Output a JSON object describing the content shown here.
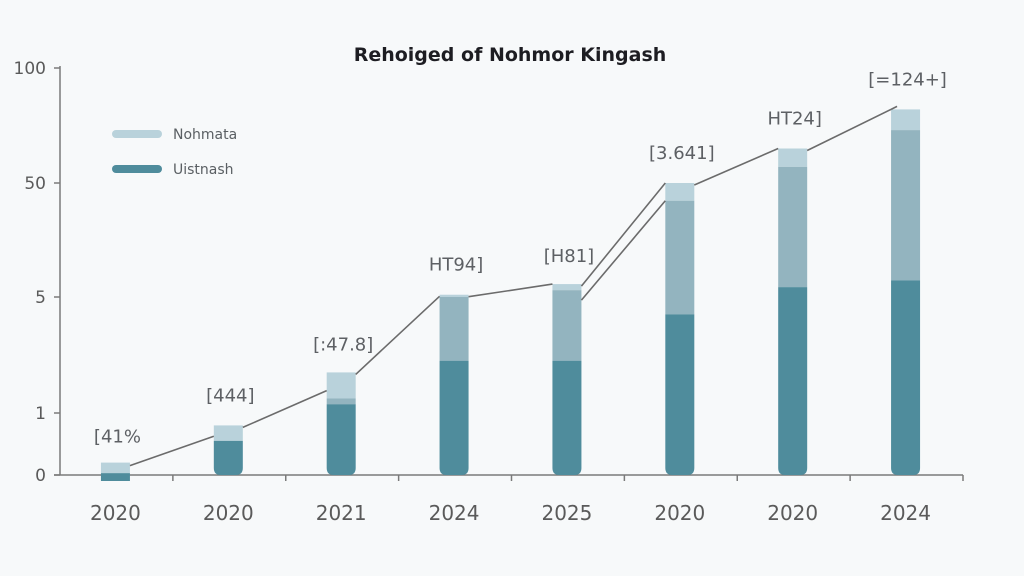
{
  "chart_data": {
    "type": "bar",
    "stacked": true,
    "title": "Rehoiged of Nohmor Kingash",
    "xlabel": "",
    "ylabel": "",
    "y_ticks": [
      0,
      1,
      5,
      50,
      100
    ],
    "y_tick_labels": [
      "0",
      "1",
      "5",
      "50",
      "100"
    ],
    "ylim": [
      0,
      100
    ],
    "y_scale": "nonlinear (ticks 0, 1, 5, 50, 100 evenly spaced)",
    "grid": false,
    "legend_position": "top-left",
    "categories": [
      "2020",
      "2020",
      "2021",
      "2024",
      "2025",
      "2020",
      "2020",
      "2024"
    ],
    "series": [
      {
        "name": "Uistnash",
        "color": "#4f8c9c",
        "values": [
          0.03,
          0.55,
          1.3,
          2.8,
          2.8,
          4.4,
          8.9,
          11.5
        ]
      },
      {
        "name": "",
        "color": "#93b4bf",
        "cumulative_tops": [
          0.03,
          0.55,
          1.5,
          5.0,
          7.7,
          43,
          57,
          73
        ]
      },
      {
        "name": "Nohmata",
        "color": "#b9d2db",
        "cumulative_tops": [
          0.2,
          0.8,
          2.4,
          5.9,
          10.1,
          50,
          65,
          82
        ]
      }
    ],
    "data_labels": [
      "[41%",
      "[444]",
      "[:47.8]",
      "HT94]",
      "[H81]",
      "[3.641]",
      "HT24]",
      "[=124+]"
    ],
    "trend_lines": 2
  }
}
